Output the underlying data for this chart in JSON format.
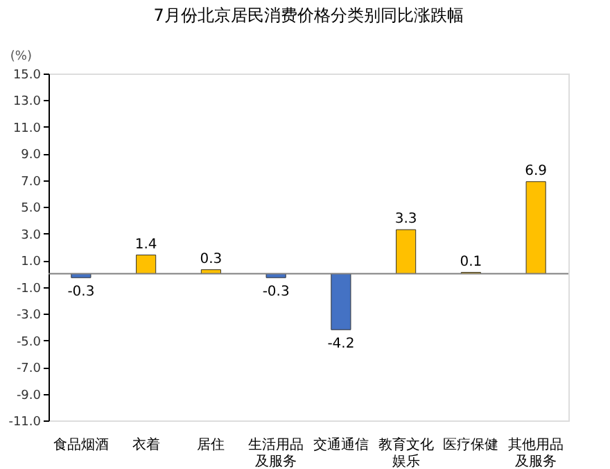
{
  "chart_data": {
    "type": "bar",
    "title": "7月份北京居民消费价格分类别同比涨跌幅",
    "ylabel": "(%)",
    "categories": [
      "食品烟酒",
      "衣着",
      "居住",
      "生活用品及服务",
      "交通通信",
      "教育文化娱乐",
      "医疗保健",
      "其他用品及服务"
    ],
    "values": [
      -0.3,
      1.4,
      0.3,
      -0.3,
      -4.2,
      3.3,
      0.1,
      6.9
    ],
    "colors": [
      "#4472c4",
      "#ffc000",
      "#ffc000",
      "#4472c4",
      "#4472c4",
      "#ffc000",
      "#ffc000",
      "#ffc000"
    ],
    "ylim": [
      -11,
      15
    ],
    "yticks": [
      {
        "value": -11,
        "label": "-11.0"
      },
      {
        "value": -9,
        "label": "-9.0"
      },
      {
        "value": -7,
        "label": "-7.0"
      },
      {
        "value": -5,
        "label": "-5.0"
      },
      {
        "value": -3,
        "label": "-3.0"
      },
      {
        "value": -1,
        "label": "-1.0"
      },
      {
        "value": 1,
        "label": "1.0"
      },
      {
        "value": 3,
        "label": "3.0"
      },
      {
        "value": 5,
        "label": "5.0"
      },
      {
        "value": 7,
        "label": "7.0"
      },
      {
        "value": 9,
        "label": "9.0"
      },
      {
        "value": 11,
        "label": "11.0"
      },
      {
        "value": 13,
        "label": "13.0"
      },
      {
        "value": 15,
        "label": "15.0"
      }
    ],
    "ref_lines": [
      {
        "axis": "y",
        "value": 0,
        "color": "#7f7f7f"
      }
    ],
    "data_labels": true,
    "grid": false
  }
}
